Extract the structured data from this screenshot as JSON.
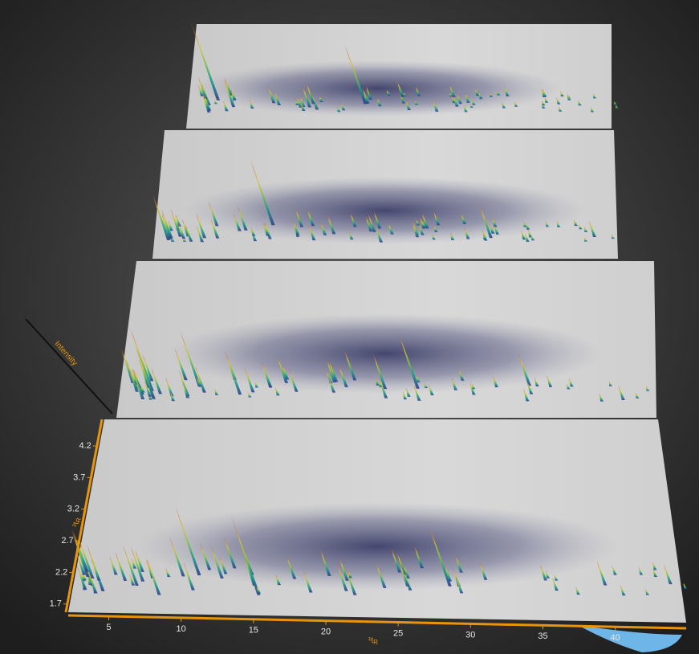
{
  "chart_data": {
    "type": "surface3d",
    "x_label": "¹t",
    "x_label_sub": "R",
    "y_label": "²t",
    "y_label_sub": "R",
    "z_label": "Intensity",
    "xlim": [
      2.2,
      44.9
    ],
    "xticks": [
      5,
      10,
      15,
      20,
      25,
      30,
      35,
      40
    ],
    "ylim": [
      1.57,
      4.62
    ],
    "yticks": [
      1.7,
      2.2,
      2.7,
      3.2,
      3.7,
      4.2
    ],
    "axis_color": "#e8940c"
  }
}
